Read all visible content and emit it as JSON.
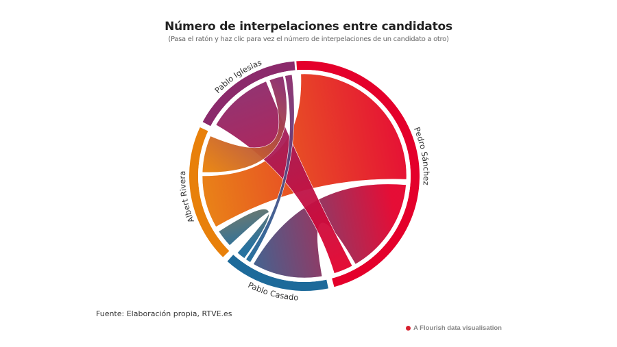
{
  "header": {
    "title": "Número de interpelaciones entre candidatos",
    "subtitle": "(Pasa el ratón y haz clic para vez el número de interpelaciones de un candidato a otro)"
  },
  "footer": {
    "source": "Fuente: Elaboración propia, RTVE.es",
    "credit": "A Flourish data visualisation"
  },
  "colors": {
    "pedro_sanchez": "#e4002b",
    "pablo_casado": "#1d6a9a",
    "albert_rivera": "#e8800a",
    "pablo_iglesias": "#8b2a6b",
    "background": "#ffffff",
    "credit_dot": "#d7202e"
  },
  "chart_data": {
    "type": "chord",
    "title": "Número de interpelaciones entre candidatos",
    "subtitle": "(Pasa el ratón y haz clic para vez el número de interpelaciones de un candidato a otro)",
    "nodes": [
      {
        "name": "Pedro Sánchez",
        "color": "#e4002b",
        "start_deg": -4,
        "end_deg": 165
      },
      {
        "name": "Pablo Casado",
        "color": "#1d6a9a",
        "start_deg": 168,
        "end_deg": 222
      },
      {
        "name": "Albert Rivera",
        "color": "#e8800a",
        "start_deg": 225,
        "end_deg": 295
      },
      {
        "name": "Pablo Iglesias",
        "color": "#8b2a6b",
        "start_deg": 298,
        "end_deg": 355
      }
    ],
    "approx_share_of_total_pct": {
      "Pedro Sánchez": 48,
      "Pablo Casado": 16,
      "Albert Rivera": 20,
      "Pablo Iglesias": 16
    },
    "ribbons": [
      {
        "from": "Albert Rivera",
        "to": "Pedro Sánchez",
        "from_deg": [
          240,
          270
        ],
        "to_deg": [
          -2,
          92
        ]
      },
      {
        "from": "Pablo Casado",
        "to": "Pedro Sánchez",
        "from_deg": [
          170,
          210
        ],
        "to_deg": [
          95,
          150
        ]
      },
      {
        "from": "Pablo Iglesias",
        "to": "Pedro Sánchez",
        "from_deg": [
          300,
          338
        ],
        "to_deg": [
          152,
          163
        ]
      },
      {
        "from": "Pablo Iglesias",
        "to": "Albert Rivera",
        "from_deg": [
          340,
          348
        ],
        "to_deg": [
          272,
          293
        ]
      },
      {
        "from": "Pablo Iglesias",
        "to": "Pablo Casado",
        "from_deg": [
          349,
          353
        ],
        "to_deg": [
          212,
          215
        ]
      },
      {
        "from": "Albert Rivera",
        "to": "Pablo Casado",
        "from_deg": [
          227,
          237
        ],
        "to_deg": [
          216,
          221
        ]
      }
    ],
    "legend": "node labels around circle"
  }
}
